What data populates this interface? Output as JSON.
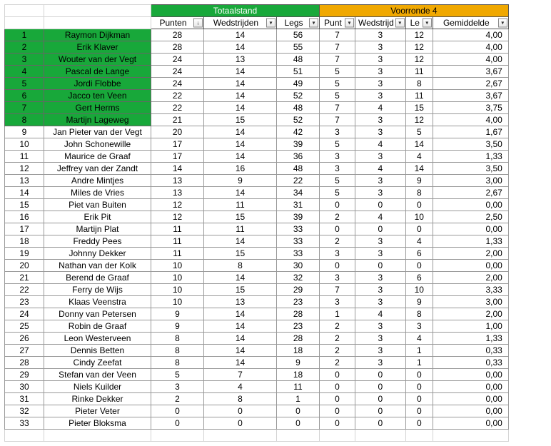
{
  "headerGroups": {
    "totaalstand": "Totaalstand",
    "voorronde": "Voorronde 4"
  },
  "columns": {
    "punten": "Punten",
    "wedstrijden": "Wedstrijden",
    "legs": "Legs",
    "punt2": "Punt",
    "wedstrijd2": "Wedstrijd",
    "le2": "Le",
    "gemiddelde": "Gemiddelde"
  },
  "colors": {
    "green": "#18a83a",
    "orange": "#f0a800",
    "border": "#a0a0a0",
    "text": "#000000"
  },
  "greenRowsThrough": 8,
  "rows": [
    {
      "rank": 1,
      "name": "Raymon Dijkman",
      "punten": 28,
      "wed": 14,
      "legs": 56,
      "p2": 7,
      "w2": 3,
      "l2": 12,
      "gem": "4,00"
    },
    {
      "rank": 2,
      "name": "Erik Klaver",
      "punten": 28,
      "wed": 14,
      "legs": 55,
      "p2": 7,
      "w2": 3,
      "l2": 12,
      "gem": "4,00"
    },
    {
      "rank": 3,
      "name": "Wouter van der Vegt",
      "punten": 24,
      "wed": 13,
      "legs": 48,
      "p2": 7,
      "w2": 3,
      "l2": 12,
      "gem": "4,00"
    },
    {
      "rank": 4,
      "name": "Pascal de Lange",
      "punten": 24,
      "wed": 14,
      "legs": 51,
      "p2": 5,
      "w2": 3,
      "l2": 11,
      "gem": "3,67"
    },
    {
      "rank": 5,
      "name": "Jordi Flobbe",
      "punten": 24,
      "wed": 14,
      "legs": 49,
      "p2": 5,
      "w2": 3,
      "l2": 8,
      "gem": "2,67"
    },
    {
      "rank": 6,
      "name": "Jacco ten Veen",
      "punten": 22,
      "wed": 14,
      "legs": 52,
      "p2": 5,
      "w2": 3,
      "l2": 11,
      "gem": "3,67"
    },
    {
      "rank": 7,
      "name": "Gert Herms",
      "punten": 22,
      "wed": 14,
      "legs": 48,
      "p2": 7,
      "w2": 4,
      "l2": 15,
      "gem": "3,75"
    },
    {
      "rank": 8,
      "name": "Martijn Lageweg",
      "punten": 21,
      "wed": 15,
      "legs": 52,
      "p2": 7,
      "w2": 3,
      "l2": 12,
      "gem": "4,00"
    },
    {
      "rank": 9,
      "name": "Jan Pieter van der Vegt",
      "punten": 20,
      "wed": 14,
      "legs": 42,
      "p2": 3,
      "w2": 3,
      "l2": 5,
      "gem": "1,67"
    },
    {
      "rank": 10,
      "name": "John Schonewille",
      "punten": 17,
      "wed": 14,
      "legs": 39,
      "p2": 5,
      "w2": 4,
      "l2": 14,
      "gem": "3,50"
    },
    {
      "rank": 11,
      "name": "Maurice de Graaf",
      "punten": 17,
      "wed": 14,
      "legs": 36,
      "p2": 3,
      "w2": 3,
      "l2": 4,
      "gem": "1,33"
    },
    {
      "rank": 12,
      "name": "Jeffrey van der Zandt",
      "punten": 14,
      "wed": 16,
      "legs": 48,
      "p2": 3,
      "w2": 4,
      "l2": 14,
      "gem": "3,50"
    },
    {
      "rank": 13,
      "name": "Andre Mintjes",
      "punten": 13,
      "wed": 9,
      "legs": 22,
      "p2": 5,
      "w2": 3,
      "l2": 9,
      "gem": "3,00"
    },
    {
      "rank": 14,
      "name": "Miles de Vries",
      "punten": 13,
      "wed": 14,
      "legs": 34,
      "p2": 5,
      "w2": 3,
      "l2": 8,
      "gem": "2,67"
    },
    {
      "rank": 15,
      "name": "Piet van Buiten",
      "punten": 12,
      "wed": 11,
      "legs": 31,
      "p2": 0,
      "w2": 0,
      "l2": 0,
      "gem": "0,00"
    },
    {
      "rank": 16,
      "name": "Erik Pit",
      "punten": 12,
      "wed": 15,
      "legs": 39,
      "p2": 2,
      "w2": 4,
      "l2": 10,
      "gem": "2,50"
    },
    {
      "rank": 17,
      "name": "Martijn Plat",
      "punten": 11,
      "wed": 11,
      "legs": 33,
      "p2": 0,
      "w2": 0,
      "l2": 0,
      "gem": "0,00"
    },
    {
      "rank": 18,
      "name": "Freddy Pees",
      "punten": 11,
      "wed": 14,
      "legs": 33,
      "p2": 2,
      "w2": 3,
      "l2": 4,
      "gem": "1,33"
    },
    {
      "rank": 19,
      "name": "Johnny Dekker",
      "punten": 11,
      "wed": 15,
      "legs": 33,
      "p2": 3,
      "w2": 3,
      "l2": 6,
      "gem": "2,00"
    },
    {
      "rank": 20,
      "name": "Nathan van der Kolk",
      "punten": 10,
      "wed": 8,
      "legs": 30,
      "p2": 0,
      "w2": 0,
      "l2": 0,
      "gem": "0,00"
    },
    {
      "rank": 21,
      "name": "Berend de Graaf",
      "punten": 10,
      "wed": 14,
      "legs": 32,
      "p2": 3,
      "w2": 3,
      "l2": 6,
      "gem": "2,00"
    },
    {
      "rank": 22,
      "name": "Ferry de Wijs",
      "punten": 10,
      "wed": 15,
      "legs": 29,
      "p2": 7,
      "w2": 3,
      "l2": 10,
      "gem": "3,33"
    },
    {
      "rank": 23,
      "name": "Klaas Veenstra",
      "punten": 10,
      "wed": 13,
      "legs": 23,
      "p2": 3,
      "w2": 3,
      "l2": 9,
      "gem": "3,00"
    },
    {
      "rank": 24,
      "name": "Donny van Petersen",
      "punten": 9,
      "wed": 14,
      "legs": 28,
      "p2": 1,
      "w2": 4,
      "l2": 8,
      "gem": "2,00"
    },
    {
      "rank": 25,
      "name": "Robin de Graaf",
      "punten": 9,
      "wed": 14,
      "legs": 23,
      "p2": 2,
      "w2": 3,
      "l2": 3,
      "gem": "1,00"
    },
    {
      "rank": 26,
      "name": "Leon Westerveen",
      "punten": 8,
      "wed": 14,
      "legs": 28,
      "p2": 2,
      "w2": 3,
      "l2": 4,
      "gem": "1,33"
    },
    {
      "rank": 27,
      "name": "Dennis Betten",
      "punten": 8,
      "wed": 14,
      "legs": 18,
      "p2": 2,
      "w2": 3,
      "l2": 1,
      "gem": "0,33"
    },
    {
      "rank": 28,
      "name": "Cindy Zeefat",
      "punten": 8,
      "wed": 14,
      "legs": 9,
      "p2": 2,
      "w2": 3,
      "l2": 1,
      "gem": "0,33"
    },
    {
      "rank": 29,
      "name": "Stefan van der Veen",
      "punten": 5,
      "wed": 7,
      "legs": 18,
      "p2": 0,
      "w2": 0,
      "l2": 0,
      "gem": "0,00"
    },
    {
      "rank": 30,
      "name": "Niels Kuilder",
      "punten": 3,
      "wed": 4,
      "legs": 11,
      "p2": 0,
      "w2": 0,
      "l2": 0,
      "gem": "0,00"
    },
    {
      "rank": 31,
      "name": "Rinke Dekker",
      "punten": 2,
      "wed": 8,
      "legs": 1,
      "p2": 0,
      "w2": 0,
      "l2": 0,
      "gem": "0,00"
    },
    {
      "rank": 32,
      "name": "Pieter Veter",
      "punten": 0,
      "wed": 0,
      "legs": 0,
      "p2": 0,
      "w2": 0,
      "l2": 0,
      "gem": "0,00"
    },
    {
      "rank": 33,
      "name": "Pieter Bloksma",
      "punten": 0,
      "wed": 0,
      "legs": 0,
      "p2": 0,
      "w2": 0,
      "l2": 0,
      "gem": "0,00"
    }
  ]
}
